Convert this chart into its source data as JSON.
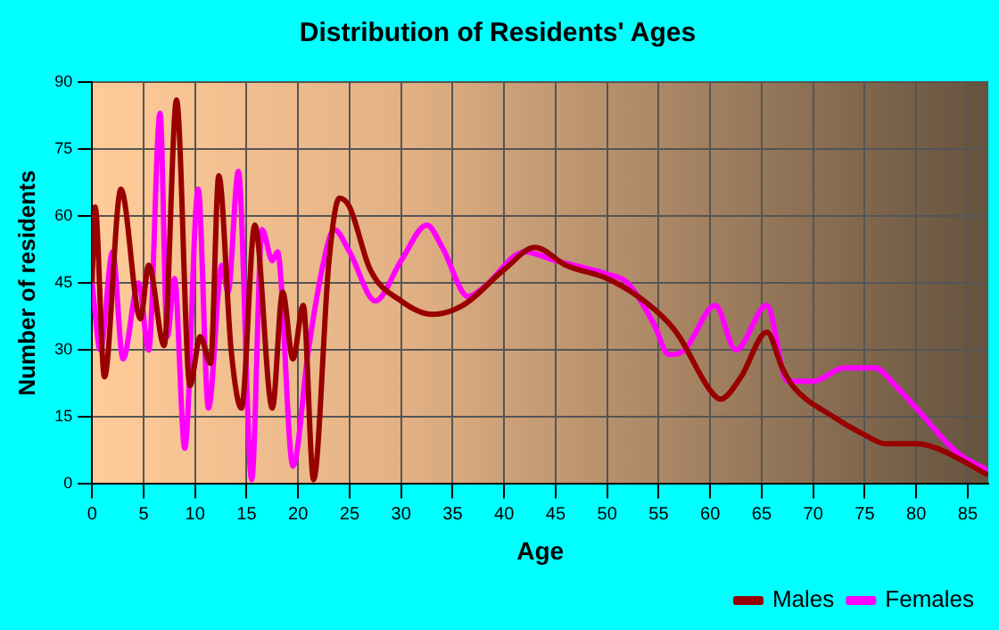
{
  "chart_data": {
    "type": "line",
    "title": "Distribution of Residents' Ages",
    "xlabel": "Age",
    "ylabel": "Number of residents",
    "xlim": [
      0,
      87
    ],
    "xticks": [
      0,
      5,
      10,
      15,
      20,
      25,
      30,
      35,
      40,
      45,
      50,
      55,
      60,
      65,
      70,
      75,
      80,
      85
    ],
    "ylim": [
      0,
      90
    ],
    "yticks": [
      0,
      15,
      30,
      45,
      60,
      75,
      90
    ],
    "grid": true,
    "legend": "bottom right",
    "marker": "none",
    "line_style": "solid",
    "series": [
      {
        "name": "Males",
        "color": "#990000",
        "x": [
          0,
          0.3,
          1.2,
          2.8,
          4.7,
          5.5,
          7,
          8.2,
          9.5,
          10.5,
          11.5,
          12.3,
          13.5,
          14.5,
          15.8,
          17.5,
          18.5,
          19.5,
          20.5,
          21.5,
          23,
          24,
          25,
          27,
          30,
          33,
          36,
          40,
          43,
          46,
          50,
          53,
          56,
          57,
          60,
          61,
          63,
          65.5,
          67,
          68,
          72,
          75,
          77,
          80,
          82,
          87
        ],
        "values": [
          45,
          62,
          24,
          66,
          37,
          49,
          31,
          86,
          22,
          33,
          27,
          69,
          30,
          17,
          58,
          17,
          43,
          28,
          40,
          1,
          50,
          64,
          62,
          48,
          41,
          38,
          40,
          48,
          53,
          49,
          46,
          42,
          36,
          33,
          21,
          19,
          24,
          34,
          26,
          22,
          15,
          11,
          9,
          9,
          8,
          2
        ]
      },
      {
        "name": "Females",
        "color": "#ff00ff",
        "x": [
          0,
          0.8,
          2,
          3,
          4.5,
          5.5,
          6.6,
          7.3,
          8,
          9,
          10.3,
          11.3,
          12.6,
          13.2,
          14.2,
          15.5,
          16.5,
          17.5,
          18,
          19.5,
          21,
          22.5,
          23.5,
          25,
          27.5,
          30,
          32.5,
          34,
          36.5,
          38,
          42,
          45,
          50,
          52,
          54.5,
          56,
          57.5,
          60.5,
          62.5,
          65.5,
          67.5,
          70,
          73,
          76,
          78,
          80,
          84,
          87
        ],
        "values": [
          45,
          30,
          52,
          28,
          45,
          30,
          83,
          33,
          46,
          8,
          66,
          17,
          49,
          43,
          70,
          1,
          57,
          50,
          52,
          4,
          30,
          50,
          57,
          52,
          41,
          50,
          58,
          53,
          42,
          44,
          52,
          50,
          47,
          45,
          36,
          29,
          30,
          40,
          30,
          40,
          23,
          23,
          26,
          26,
          22,
          17,
          7,
          3
        ]
      }
    ]
  }
}
